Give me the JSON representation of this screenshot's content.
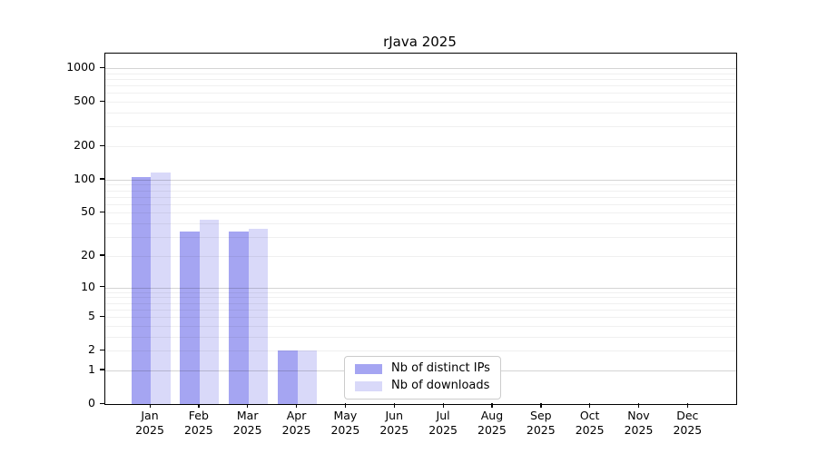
{
  "title": "rJava 2025",
  "chart_data": {
    "type": "bar",
    "categories": [
      "Jan",
      "Feb",
      "Mar",
      "Apr",
      "May",
      "Jun",
      "Jul",
      "Aug",
      "Sep",
      "Oct",
      "Nov",
      "Dec"
    ],
    "x_year_label": "2025",
    "series": [
      {
        "name": "Nb of distinct IPs",
        "color": "#a5a5f2",
        "values": [
          106,
          34,
          34,
          2,
          0,
          0,
          0,
          0,
          0,
          0,
          0,
          0
        ]
      },
      {
        "name": "Nb of downloads",
        "color": "#d9d9f9",
        "values": [
          117,
          43,
          36,
          2,
          0,
          0,
          0,
          0,
          0,
          0,
          0,
          0
        ]
      }
    ],
    "yscale": "log1p",
    "yticks": [
      0,
      1,
      2,
      5,
      10,
      20,
      50,
      100,
      200,
      500,
      1000
    ],
    "ymax": 1350,
    "ylim": [
      0,
      1350
    ],
    "grid": {
      "major_values": [
        1,
        10,
        100,
        1000
      ],
      "major_color": "rgba(0,0,0,0.17)",
      "minor_color": "rgba(0,0,0,0.06)"
    },
    "legend_position": "bottom-center",
    "axis_color": "#000000",
    "background_color": "#ffffff"
  }
}
